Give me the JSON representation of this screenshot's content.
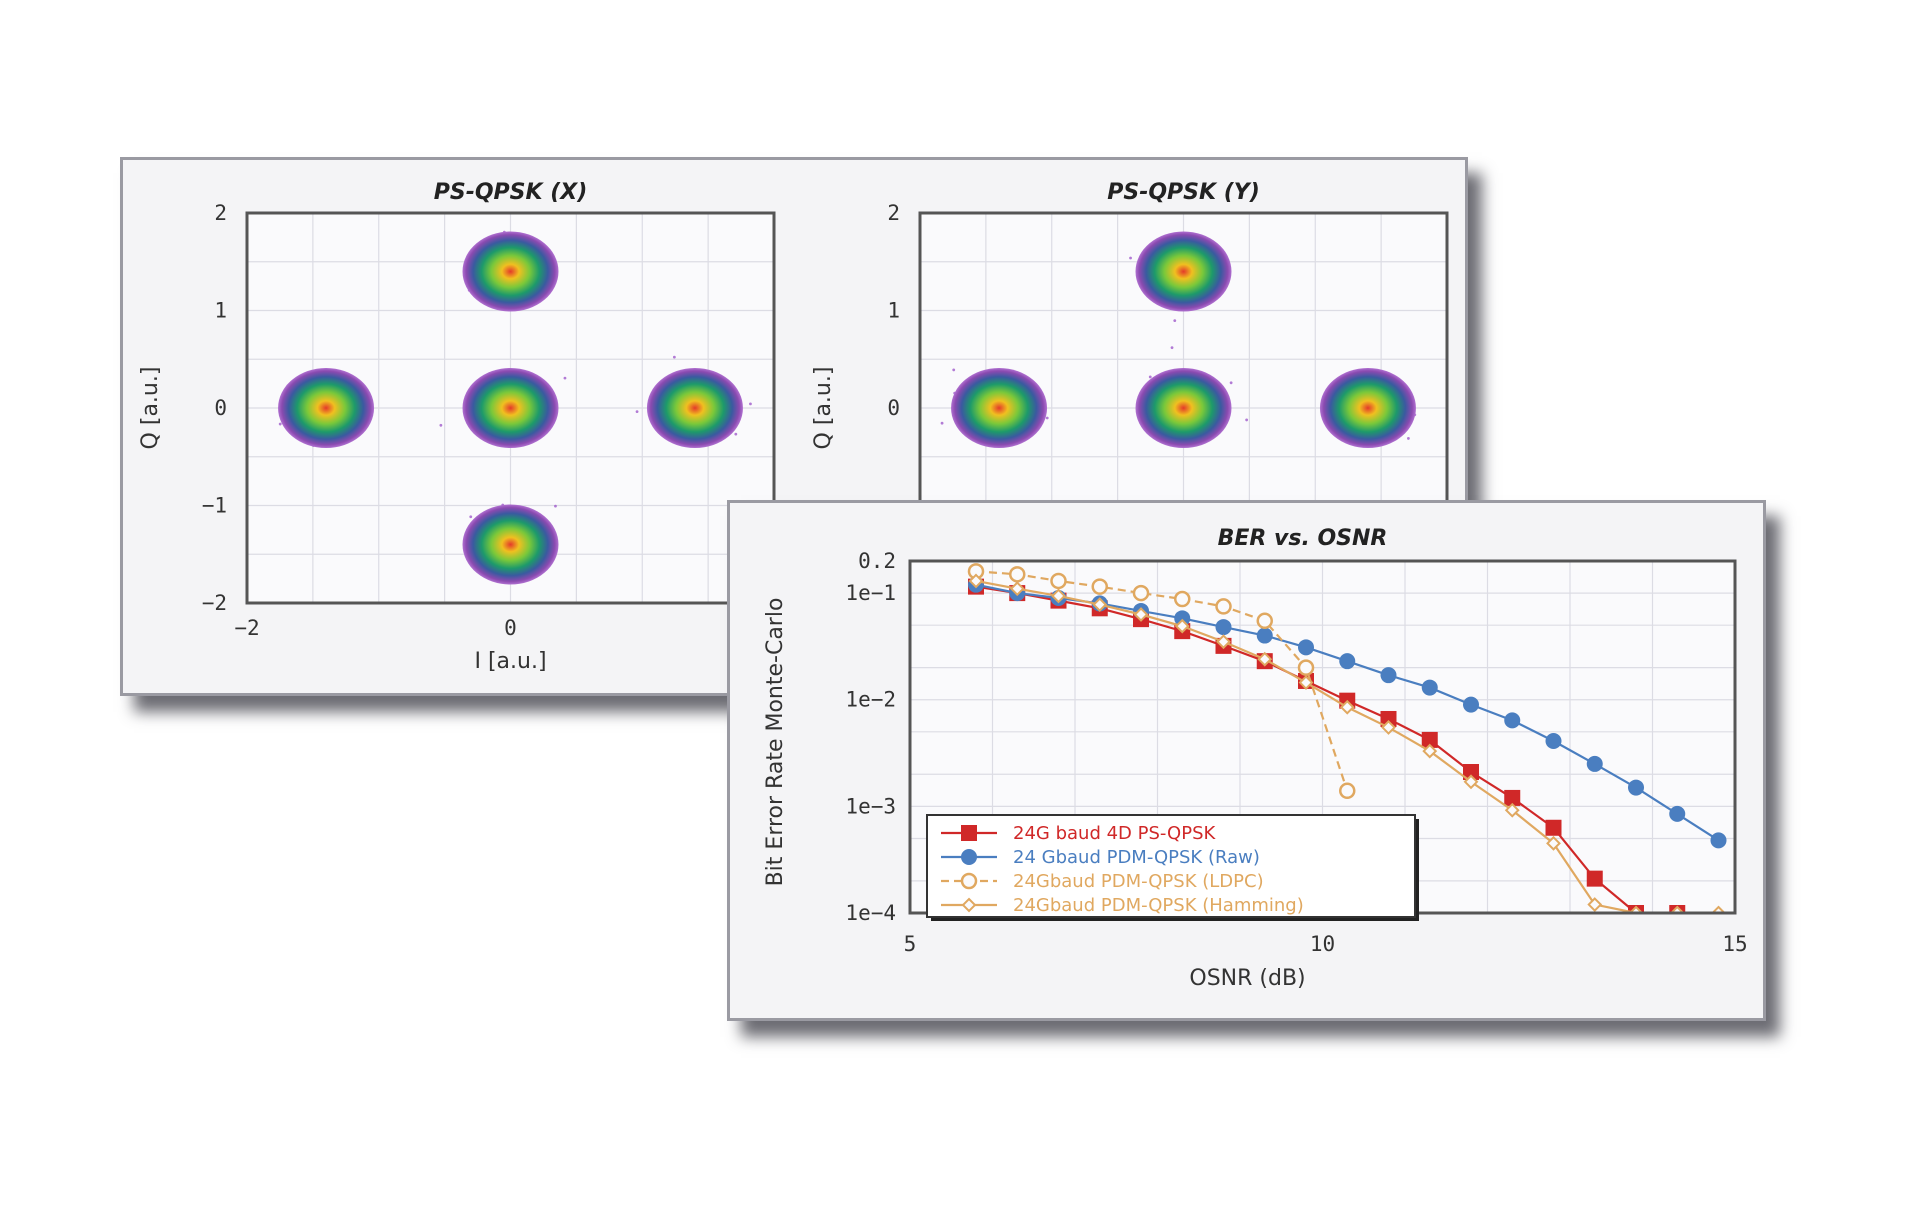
{
  "chart_data": [
    {
      "type": "scatter",
      "title": "PS-QPSK (X)",
      "xlabel": "I [a.u.]",
      "ylabel": "Q [a.u.]",
      "xlim": [
        -2,
        2
      ],
      "ylim": [
        -2,
        2
      ],
      "xticks": [
        "−2",
        "0"
      ],
      "yticks": [
        "−2",
        "−1",
        "0",
        "1",
        "2"
      ],
      "grid": true,
      "clusters": [
        {
          "x": 0,
          "y": 1.4
        },
        {
          "x": -1.4,
          "y": 0
        },
        {
          "x": 0,
          "y": 0
        },
        {
          "x": 1.4,
          "y": 0
        },
        {
          "x": 0,
          "y": -1.4
        }
      ]
    },
    {
      "type": "scatter",
      "title": "PS-QPSK (Y)",
      "xlabel": "",
      "ylabel": "Q [a.u.]",
      "xlim": [
        -2,
        2
      ],
      "ylim": [
        -2,
        2
      ],
      "yticks": [
        "0",
        "1",
        "2"
      ],
      "grid": true,
      "clusters": [
        {
          "x": 0,
          "y": 1.4
        },
        {
          "x": -1.4,
          "y": 0
        },
        {
          "x": 0,
          "y": 0
        },
        {
          "x": 1.4,
          "y": 0
        }
      ]
    },
    {
      "type": "line",
      "title": "BER vs. OSNR",
      "xlabel": "OSNR (dB)",
      "ylabel": "Bit Error Rate Monte-Carlo",
      "xscale": "linear",
      "yscale": "log",
      "xlim": [
        5,
        15
      ],
      "ylim": [
        0.0001,
        0.2
      ],
      "xticks": [
        "5",
        "10",
        "15"
      ],
      "yticks": [
        "0.2",
        "1e−1",
        "1e−2",
        "1e−3",
        "1e−4"
      ],
      "grid": true,
      "legend_position": "bottom-left",
      "series": [
        {
          "name": "24G baud 4D PS-QPSK",
          "color": "#d02828",
          "marker": "square",
          "dash": "solid",
          "x": [
            5.8,
            6.3,
            6.8,
            7.3,
            7.8,
            8.3,
            8.8,
            9.3,
            9.8,
            10.3,
            10.8,
            11.3,
            11.8,
            12.3,
            12.8,
            13.3,
            13.8,
            14.3
          ],
          "y": [
            0.115,
            0.1,
            0.085,
            0.072,
            0.057,
            0.044,
            0.032,
            0.023,
            0.015,
            0.0098,
            0.0066,
            0.0042,
            0.0021,
            0.0012,
            0.00063,
            0.00021,
            0.0001,
            0.0001
          ]
        },
        {
          "name": "24 Gbaud PDM-QPSK (Raw)",
          "color": "#4a7ec0",
          "marker": "circle",
          "dash": "solid",
          "x": [
            5.8,
            6.3,
            6.8,
            7.3,
            7.8,
            8.3,
            8.8,
            9.3,
            9.8,
            10.3,
            10.8,
            11.3,
            11.8,
            12.3,
            12.8,
            13.3,
            13.8,
            14.3,
            14.8
          ],
          "y": [
            0.12,
            0.1,
            0.09,
            0.08,
            0.068,
            0.058,
            0.048,
            0.04,
            0.031,
            0.023,
            0.017,
            0.013,
            0.009,
            0.0064,
            0.0041,
            0.0025,
            0.0015,
            0.00085,
            0.00048
          ]
        },
        {
          "name": "24Gbaud PDM-QPSK (LDPC)",
          "color": "#e0a860",
          "marker": "open-circle",
          "dash": "dashed",
          "x": [
            5.8,
            6.3,
            6.8,
            7.3,
            7.8,
            8.3,
            8.8,
            9.3,
            9.8,
            10.3
          ],
          "y": [
            0.16,
            0.15,
            0.13,
            0.115,
            0.1,
            0.088,
            0.075,
            0.055,
            0.02,
            0.0014
          ]
        },
        {
          "name": "24Gbaud PDM-QPSK (Hamming)",
          "color": "#e0a860",
          "marker": "diamond",
          "dash": "solid",
          "x": [
            5.8,
            6.3,
            6.8,
            7.3,
            7.8,
            8.3,
            8.8,
            9.3,
            9.8,
            10.3,
            10.8,
            11.3,
            11.8,
            12.3,
            12.8,
            13.3,
            13.8,
            14.3,
            14.8
          ],
          "y": [
            0.13,
            0.11,
            0.094,
            0.078,
            0.063,
            0.049,
            0.035,
            0.024,
            0.0145,
            0.0085,
            0.0055,
            0.0033,
            0.0017,
            0.00092,
            0.00045,
            0.00012,
            0.0001,
            0.0001,
            0.0001
          ]
        }
      ]
    }
  ]
}
